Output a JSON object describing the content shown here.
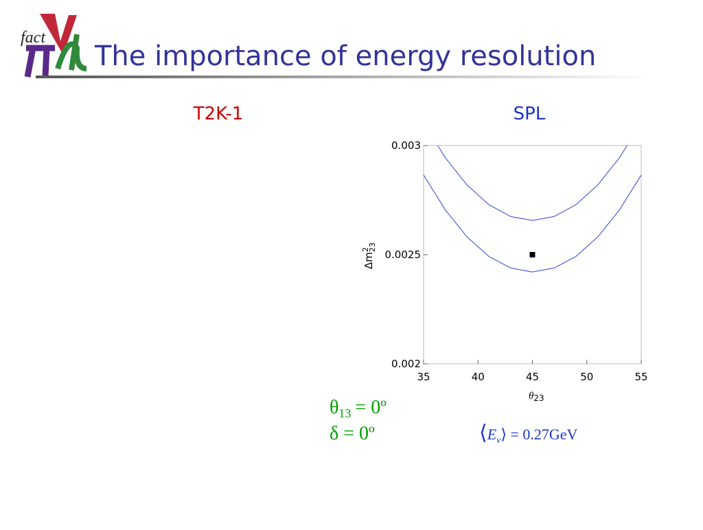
{
  "header": {
    "logo_text": "fact",
    "title": "The importance of energy resolution"
  },
  "panels": {
    "left_label": "T2K-1",
    "right_label": "SPL"
  },
  "annotations": {
    "theta_symbol": "θ",
    "theta_sub": "13",
    "theta_rest": "= 0º",
    "delta": "δ = 0º",
    "energy_open": "⟨",
    "energy_symbol": "E",
    "energy_sub": "ν",
    "energy_rest": "⟩ = 0.27GeV"
  },
  "chart_data": {
    "type": "line",
    "x_label": "θ",
    "x_label_sub": "23",
    "y_label": "Δm",
    "y_label_sup": "2",
    "y_label_sub": "23",
    "xlim": [
      35,
      55
    ],
    "xticks": [
      35,
      40,
      45,
      50,
      55
    ],
    "ylim": [
      0.002,
      0.003
    ],
    "yticks": [
      0.002,
      0.0025,
      0.003
    ],
    "series": [
      {
        "color": "#3344cc",
        "x": [
          35,
          37,
          39,
          41,
          43,
          45,
          47,
          49,
          51,
          53,
          55
        ],
        "values": [
          0.002865,
          0.002705,
          0.002581,
          0.002492,
          0.002439,
          0.002421,
          0.002439,
          0.002492,
          0.002581,
          0.002705,
          0.002865
        ]
      },
      {
        "color": "#3344cc",
        "x": [
          36.3,
          37,
          39,
          41,
          43,
          45,
          47,
          49,
          51,
          53,
          53.7
        ],
        "values": [
          0.003,
          0.002944,
          0.002819,
          0.002729,
          0.002675,
          0.002657,
          0.002675,
          0.002729,
          0.002819,
          0.002944,
          0.003
        ]
      },
      {
        "type": "scatter",
        "color": "#000000",
        "x": [
          45
        ],
        "values": [
          0.0025
        ]
      }
    ]
  }
}
